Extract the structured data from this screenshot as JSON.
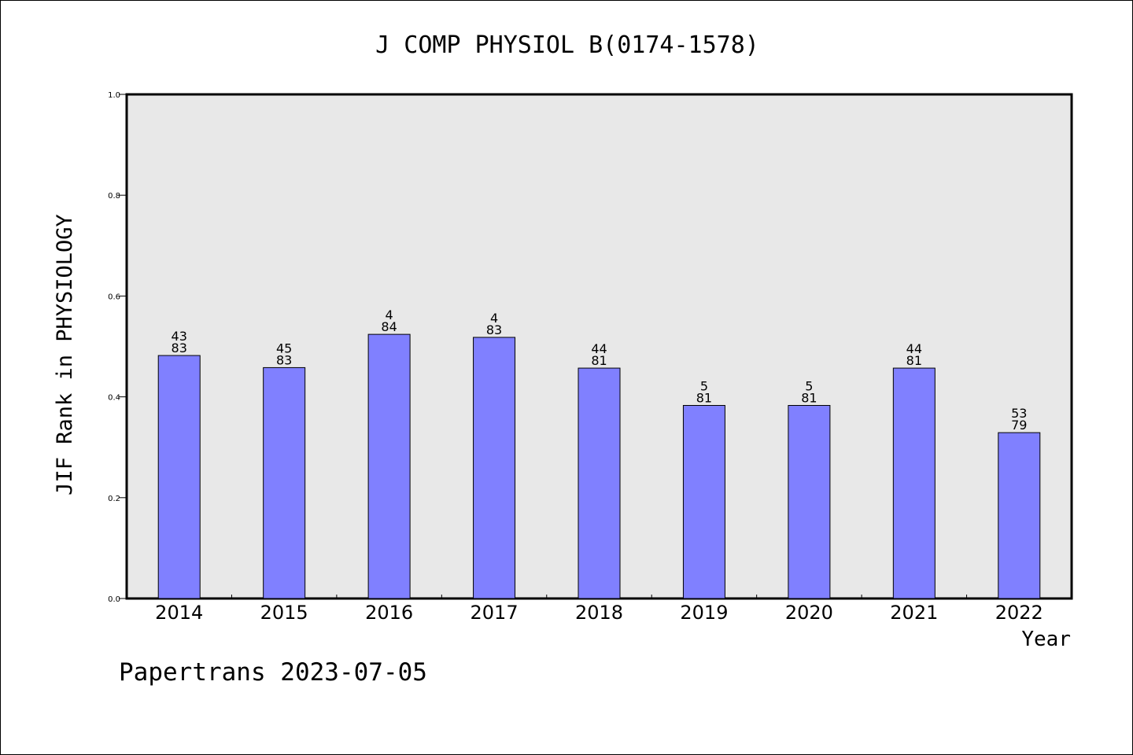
{
  "chart_data": {
    "type": "bar",
    "title": "J COMP PHYSIOL B(0174-1578)",
    "xlabel": "Year",
    "ylabel": "JIF Rank in PHYSIOLOGY",
    "ylim": [
      0,
      1.0
    ],
    "yticks": [
      "0.0",
      "0.2",
      "0.4",
      "0.6",
      "0.8",
      "1.0"
    ],
    "categories": [
      "2014",
      "2015",
      "2016",
      "2017",
      "2018",
      "2019",
      "2020",
      "2021",
      "2022"
    ],
    "values": [
      0.482,
      0.458,
      0.524,
      0.518,
      0.457,
      0.383,
      0.383,
      0.457,
      0.329
    ],
    "rank_labels": [
      {
        "top": "43",
        "bottom": "83"
      },
      {
        "top": "45",
        "bottom": "83"
      },
      {
        "top": "4",
        "bottom": "84"
      },
      {
        "top": "4",
        "bottom": "83"
      },
      {
        "top": "44",
        "bottom": "81"
      },
      {
        "top": "5",
        "bottom": "81"
      },
      {
        "top": "5",
        "bottom": "81"
      },
      {
        "top": "44",
        "bottom": "81"
      },
      {
        "top": "53",
        "bottom": "79"
      }
    ],
    "grid": false,
    "bar_color": "#8080ff",
    "plot_background": "#e8e8e8"
  },
  "footer": {
    "source_text": "Papertrans 2023-07-05"
  }
}
